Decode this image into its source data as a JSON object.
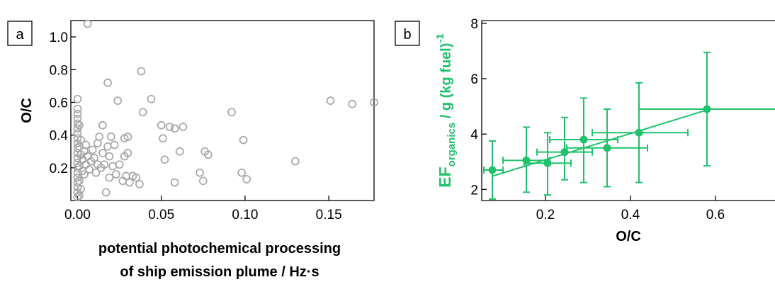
{
  "chart_data": [
    {
      "type": "scatter",
      "panel_label": "a",
      "xlabel_lines": [
        "potential photochemical processing",
        "of ship emission plume / Hz·s"
      ],
      "ylabel": "O/C",
      "xlim": [
        -0.004,
        0.177
      ],
      "ylim": [
        0.0,
        1.1
      ],
      "xticks": [
        0.0,
        0.05,
        0.1,
        0.15
      ],
      "xtick_labels": [
        "0.00",
        "0.05",
        "0.10",
        "0.15"
      ],
      "yticks": [
        0.2,
        0.4,
        0.6,
        0.8,
        1.0
      ],
      "ytick_labels": [
        "0.2",
        "0.4",
        "0.6",
        "0.8",
        "1.0"
      ],
      "marker": "open-circle",
      "color": "#a6a6a6",
      "points": [
        [
          0.0,
          0.02
        ],
        [
          0.0,
          0.05
        ],
        [
          0.0,
          0.08
        ],
        [
          0.0,
          0.11
        ],
        [
          0.0,
          0.14
        ],
        [
          0.0,
          0.17
        ],
        [
          0.0,
          0.2
        ],
        [
          0.0,
          0.23
        ],
        [
          0.0,
          0.26
        ],
        [
          0.0,
          0.29
        ],
        [
          0.0,
          0.32
        ],
        [
          0.0,
          0.35
        ],
        [
          0.0,
          0.38
        ],
        [
          0.0,
          0.41
        ],
        [
          0.0,
          0.44
        ],
        [
          0.0,
          0.47
        ],
        [
          0.0,
          0.5
        ],
        [
          0.0,
          0.53
        ],
        [
          0.0,
          0.56
        ],
        [
          0.0,
          0.62
        ],
        [
          0.001,
          0.03
        ],
        [
          0.001,
          0.12
        ],
        [
          0.001,
          0.21
        ],
        [
          0.001,
          0.33
        ],
        [
          0.001,
          0.46
        ],
        [
          0.002,
          0.07
        ],
        [
          0.002,
          0.28
        ],
        [
          0.002,
          0.37
        ],
        [
          0.003,
          0.18
        ],
        [
          0.003,
          0.25
        ],
        [
          0.004,
          0.16
        ],
        [
          0.004,
          0.3
        ],
        [
          0.005,
          0.22
        ],
        [
          0.005,
          0.34
        ],
        [
          0.006,
          0.27
        ],
        [
          0.006,
          1.08
        ],
        [
          0.007,
          0.19
        ],
        [
          0.008,
          0.24
        ],
        [
          0.009,
          0.31
        ],
        [
          0.01,
          0.26
        ],
        [
          0.011,
          0.17
        ],
        [
          0.012,
          0.22
        ],
        [
          0.012,
          0.35
        ],
        [
          0.013,
          0.39
        ],
        [
          0.014,
          0.2
        ],
        [
          0.015,
          0.29
        ],
        [
          0.015,
          0.46
        ],
        [
          0.016,
          0.22
        ],
        [
          0.017,
          0.05
        ],
        [
          0.018,
          0.33
        ],
        [
          0.019,
          0.14
        ],
        [
          0.019,
          0.27
        ],
        [
          0.02,
          0.39
        ],
        [
          0.021,
          0.21
        ],
        [
          0.022,
          0.34
        ],
        [
          0.023,
          0.16
        ],
        [
          0.024,
          0.61
        ],
        [
          0.025,
          0.22
        ],
        [
          0.027,
          0.12
        ],
        [
          0.028,
          0.27
        ],
        [
          0.028,
          0.38
        ],
        [
          0.029,
          0.15
        ],
        [
          0.03,
          0.29
        ],
        [
          0.03,
          0.39
        ],
        [
          0.031,
          0.11
        ],
        [
          0.018,
          0.72
        ],
        [
          0.033,
          0.15
        ],
        [
          0.035,
          0.14
        ],
        [
          0.037,
          0.1
        ],
        [
          0.038,
          0.79
        ],
        [
          0.039,
          0.54
        ],
        [
          0.044,
          0.62
        ],
        [
          0.05,
          0.46
        ],
        [
          0.051,
          0.38
        ],
        [
          0.052,
          0.25
        ],
        [
          0.055,
          0.45
        ],
        [
          0.058,
          0.11
        ],
        [
          0.058,
          0.44
        ],
        [
          0.061,
          0.3
        ],
        [
          0.063,
          0.45
        ],
        [
          0.073,
          0.17
        ],
        [
          0.075,
          0.12
        ],
        [
          0.076,
          0.3
        ],
        [
          0.078,
          0.28
        ],
        [
          0.092,
          0.54
        ],
        [
          0.098,
          0.17
        ],
        [
          0.099,
          0.37
        ],
        [
          0.101,
          0.13
        ],
        [
          0.13,
          0.24
        ],
        [
          0.151,
          0.61
        ],
        [
          0.164,
          0.59
        ],
        [
          0.177,
          0.6
        ]
      ]
    },
    {
      "type": "scatter",
      "panel_label": "b",
      "xlabel": "O/C",
      "ylabel_main": "EF",
      "ylabel_sub": "organics",
      "ylabel_rest": " / g (kg fuel)",
      "ylabel_sup": "-1",
      "xlim": [
        0.05,
        0.74
      ],
      "ylim": [
        1.6,
        8.1
      ],
      "xticks": [
        0.2,
        0.4,
        0.6
      ],
      "xtick_labels": [
        "0.2",
        "0.4",
        "0.6"
      ],
      "yticks": [
        2,
        4,
        6,
        8
      ],
      "ytick_labels": [
        "2",
        "4",
        "6",
        "8"
      ],
      "color": "#1fc26c",
      "points": [
        {
          "x": 0.075,
          "y": 2.7,
          "x_lo": 0.055,
          "x_hi": 0.1,
          "y_lo": 1.65,
          "y_hi": 3.75
        },
        {
          "x": 0.155,
          "y": 3.05,
          "x_lo": 0.1,
          "x_hi": 0.21,
          "y_lo": 1.9,
          "y_hi": 4.25
        },
        {
          "x": 0.205,
          "y": 2.95,
          "x_lo": 0.15,
          "x_hi": 0.26,
          "y_lo": 1.8,
          "y_hi": 4.05
        },
        {
          "x": 0.245,
          "y": 3.35,
          "x_lo": 0.18,
          "x_hi": 0.31,
          "y_lo": 2.35,
          "y_hi": 4.6
        },
        {
          "x": 0.29,
          "y": 3.8,
          "x_lo": 0.21,
          "x_hi": 0.37,
          "y_lo": 2.25,
          "y_hi": 5.3
        },
        {
          "x": 0.345,
          "y": 3.5,
          "x_lo": 0.25,
          "x_hi": 0.44,
          "y_lo": 2.1,
          "y_hi": 4.9
        },
        {
          "x": 0.42,
          "y": 4.05,
          "x_lo": 0.31,
          "x_hi": 0.535,
          "y_lo": 2.25,
          "y_hi": 5.85
        },
        {
          "x": 0.58,
          "y": 4.9,
          "x_lo": 0.42,
          "x_hi": 0.74,
          "y_lo": 2.85,
          "y_hi": 6.95
        }
      ],
      "fit_line": [
        [
          0.075,
          2.48
        ],
        [
          0.58,
          4.87
        ]
      ]
    }
  ]
}
